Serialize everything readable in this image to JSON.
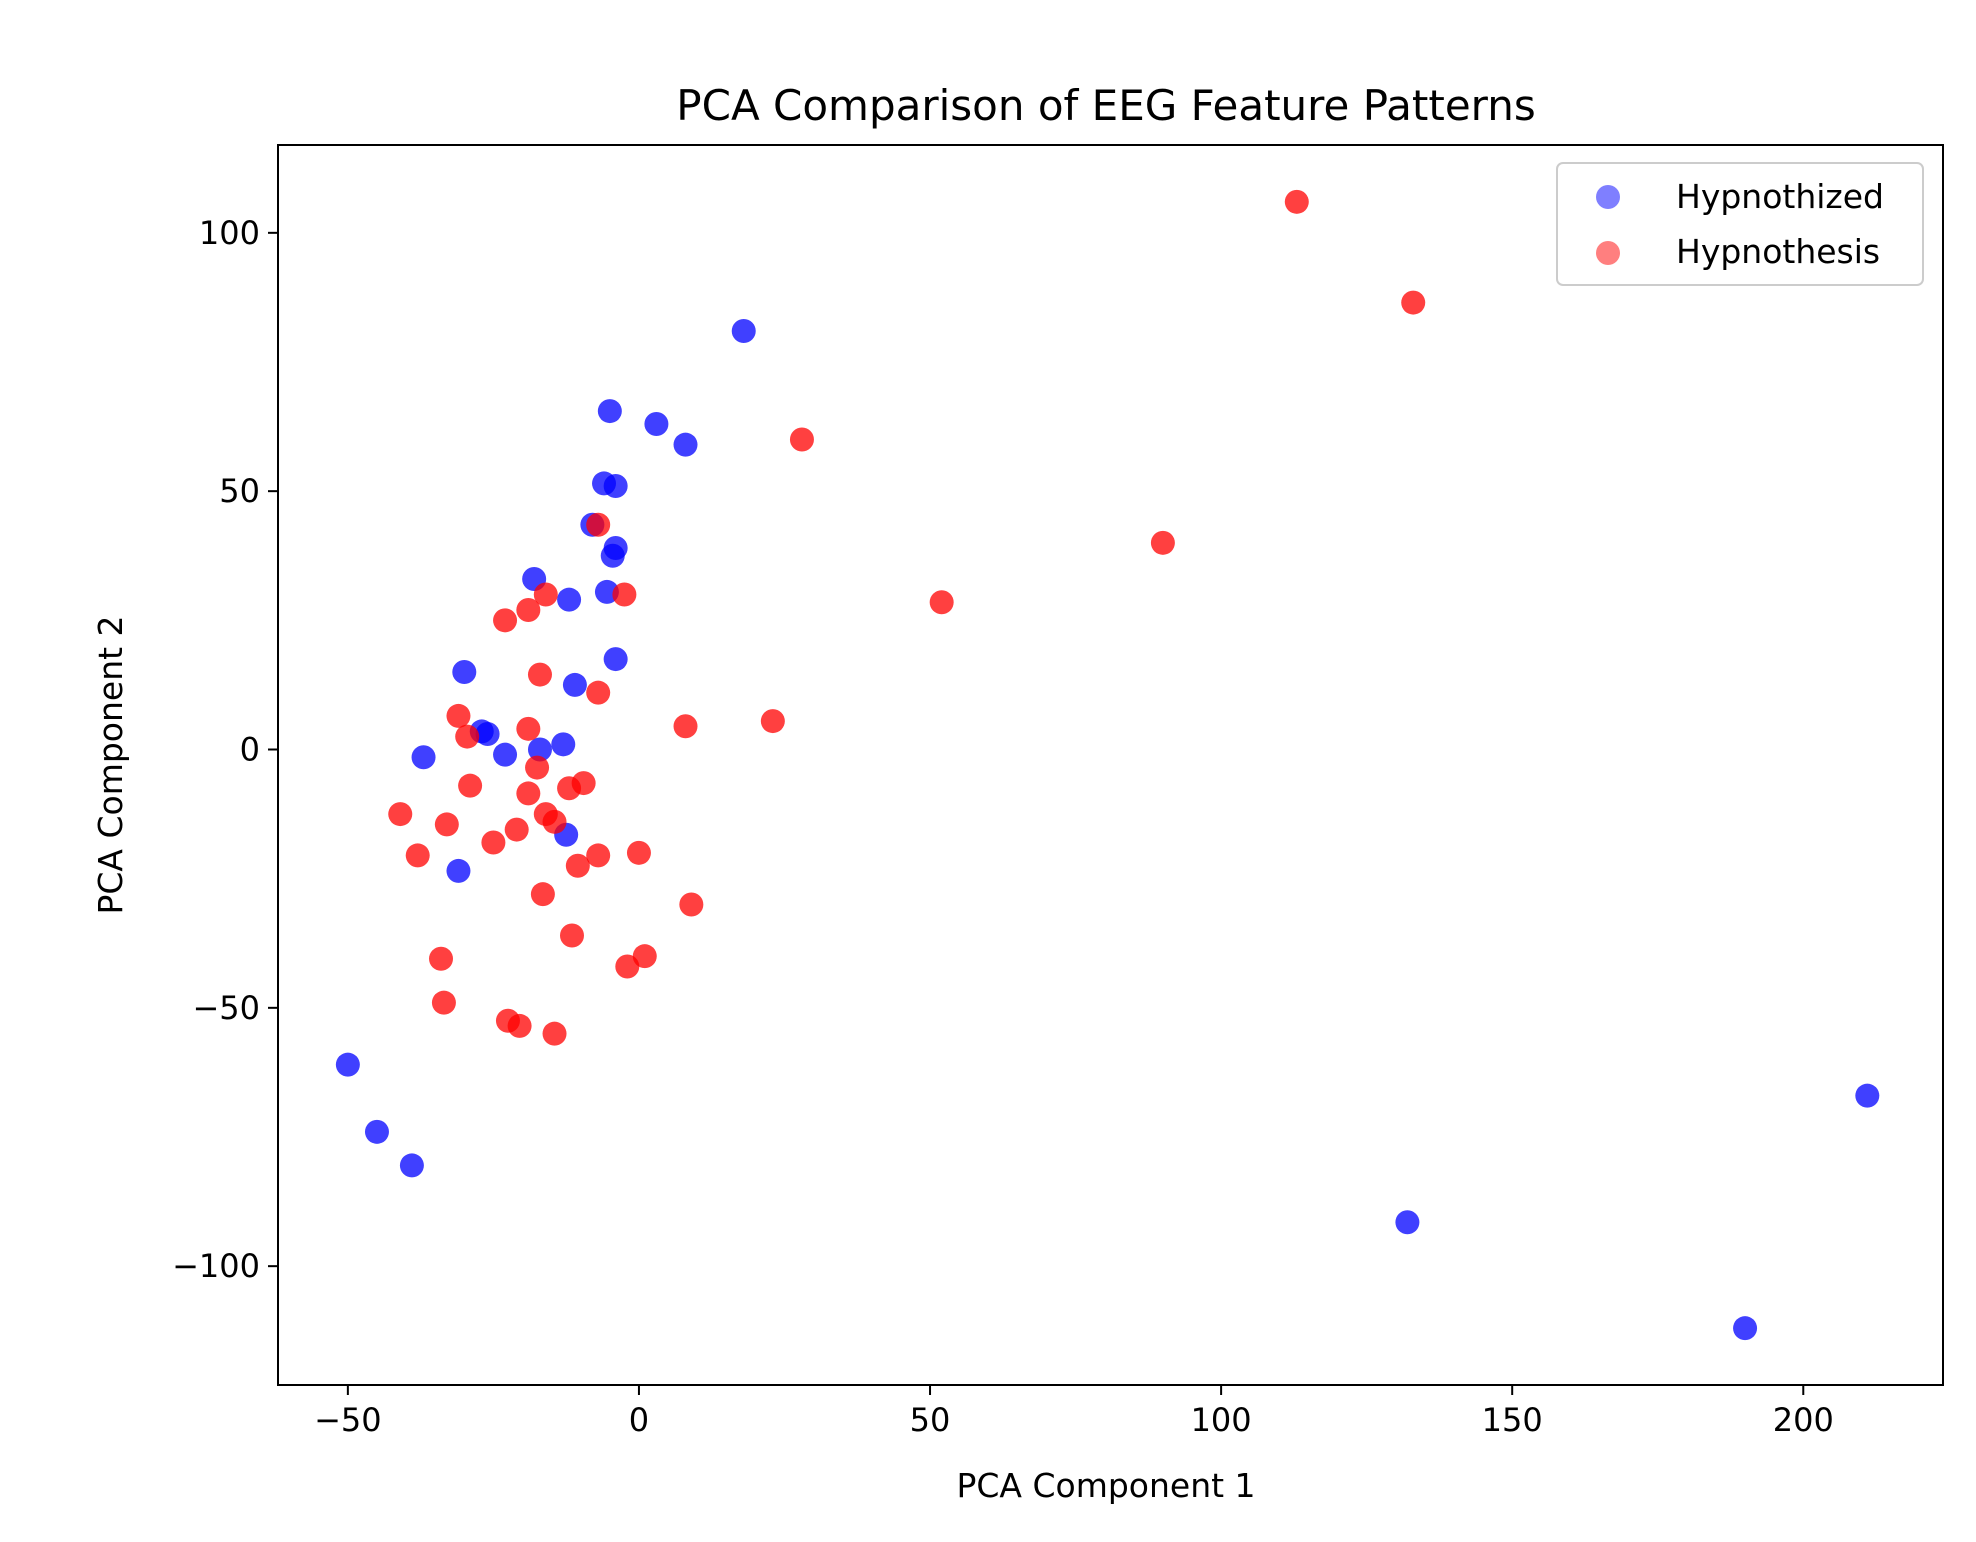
{
  "chart_data": {
    "type": "scatter",
    "title": "PCA Comparison of EEG Feature Patterns",
    "xlabel": "PCA Component 1",
    "ylabel": "PCA Component 2",
    "xlim": [
      -62,
      224
    ],
    "ylim": [
      -123,
      117
    ],
    "xticks": [
      -50,
      0,
      50,
      100,
      150,
      200
    ],
    "yticks": [
      -100,
      -50,
      0,
      50,
      100
    ],
    "xtick_labels": [
      "−50",
      "0",
      "50",
      "100",
      "150",
      "200"
    ],
    "ytick_labels": [
      "−100",
      "−50",
      "0",
      "50",
      "100"
    ],
    "grid": false,
    "legend_position": "top-right",
    "series": [
      {
        "name": "Hypnothized",
        "color": "#0000ff",
        "alpha": 0.75,
        "points": [
          [
            18,
            81
          ],
          [
            -5,
            65.5
          ],
          [
            3,
            63
          ],
          [
            8,
            59
          ],
          [
            -6,
            51.5
          ],
          [
            -4,
            51
          ],
          [
            -8,
            43.5
          ],
          [
            -4,
            39
          ],
          [
            -4.5,
            37.5
          ],
          [
            -18,
            33
          ],
          [
            -12,
            29
          ],
          [
            -5.5,
            30.5
          ],
          [
            -30,
            15
          ],
          [
            -4,
            17.5
          ],
          [
            -11,
            12.5
          ],
          [
            -27,
            3.5
          ],
          [
            -26,
            3
          ],
          [
            -13,
            1
          ],
          [
            -17,
            0
          ],
          [
            -37,
            -1.5
          ],
          [
            -23,
            -1
          ],
          [
            -12.5,
            -16.5
          ],
          [
            -31,
            -23.5
          ],
          [
            -50,
            -61
          ],
          [
            -45,
            -74
          ],
          [
            -39,
            -80.5
          ],
          [
            132,
            -91.5
          ],
          [
            190,
            -112
          ],
          [
            211,
            -67
          ]
        ]
      },
      {
        "name": "Hypnothesis",
        "color": "#ff0000",
        "alpha": 0.75,
        "points": [
          [
            113,
            106
          ],
          [
            133,
            86.5
          ],
          [
            28,
            60
          ],
          [
            -7,
            43.5
          ],
          [
            90,
            40
          ],
          [
            52,
            28.5
          ],
          [
            -16,
            30
          ],
          [
            -2.5,
            30
          ],
          [
            -19,
            27
          ],
          [
            -23,
            25
          ],
          [
            -17,
            14.5
          ],
          [
            -7,
            11
          ],
          [
            8,
            4.5
          ],
          [
            23,
            5.5
          ],
          [
            -31,
            6.5
          ],
          [
            -29.5,
            2.5
          ],
          [
            -19,
            4
          ],
          [
            -17.5,
            -3.5
          ],
          [
            -29,
            -7
          ],
          [
            -12,
            -7.5
          ],
          [
            -9.5,
            -6.5
          ],
          [
            -19,
            -8.5
          ],
          [
            -16,
            -12.5
          ],
          [
            -14.5,
            -14
          ],
          [
            -41,
            -12.5
          ],
          [
            -33,
            -14.5
          ],
          [
            -21,
            -15.5
          ],
          [
            -25,
            -18
          ],
          [
            -38,
            -20.5
          ],
          [
            -7,
            -20.5
          ],
          [
            0,
            -20
          ],
          [
            -10.5,
            -22.5
          ],
          [
            -16.5,
            -28
          ],
          [
            9,
            -30
          ],
          [
            -11.5,
            -36
          ],
          [
            -34,
            -40.5
          ],
          [
            1,
            -40
          ],
          [
            -2,
            -42
          ],
          [
            -33.5,
            -49
          ],
          [
            -22.5,
            -52.5
          ],
          [
            -20.5,
            -53.5
          ],
          [
            -14.5,
            -55
          ]
        ]
      }
    ]
  }
}
